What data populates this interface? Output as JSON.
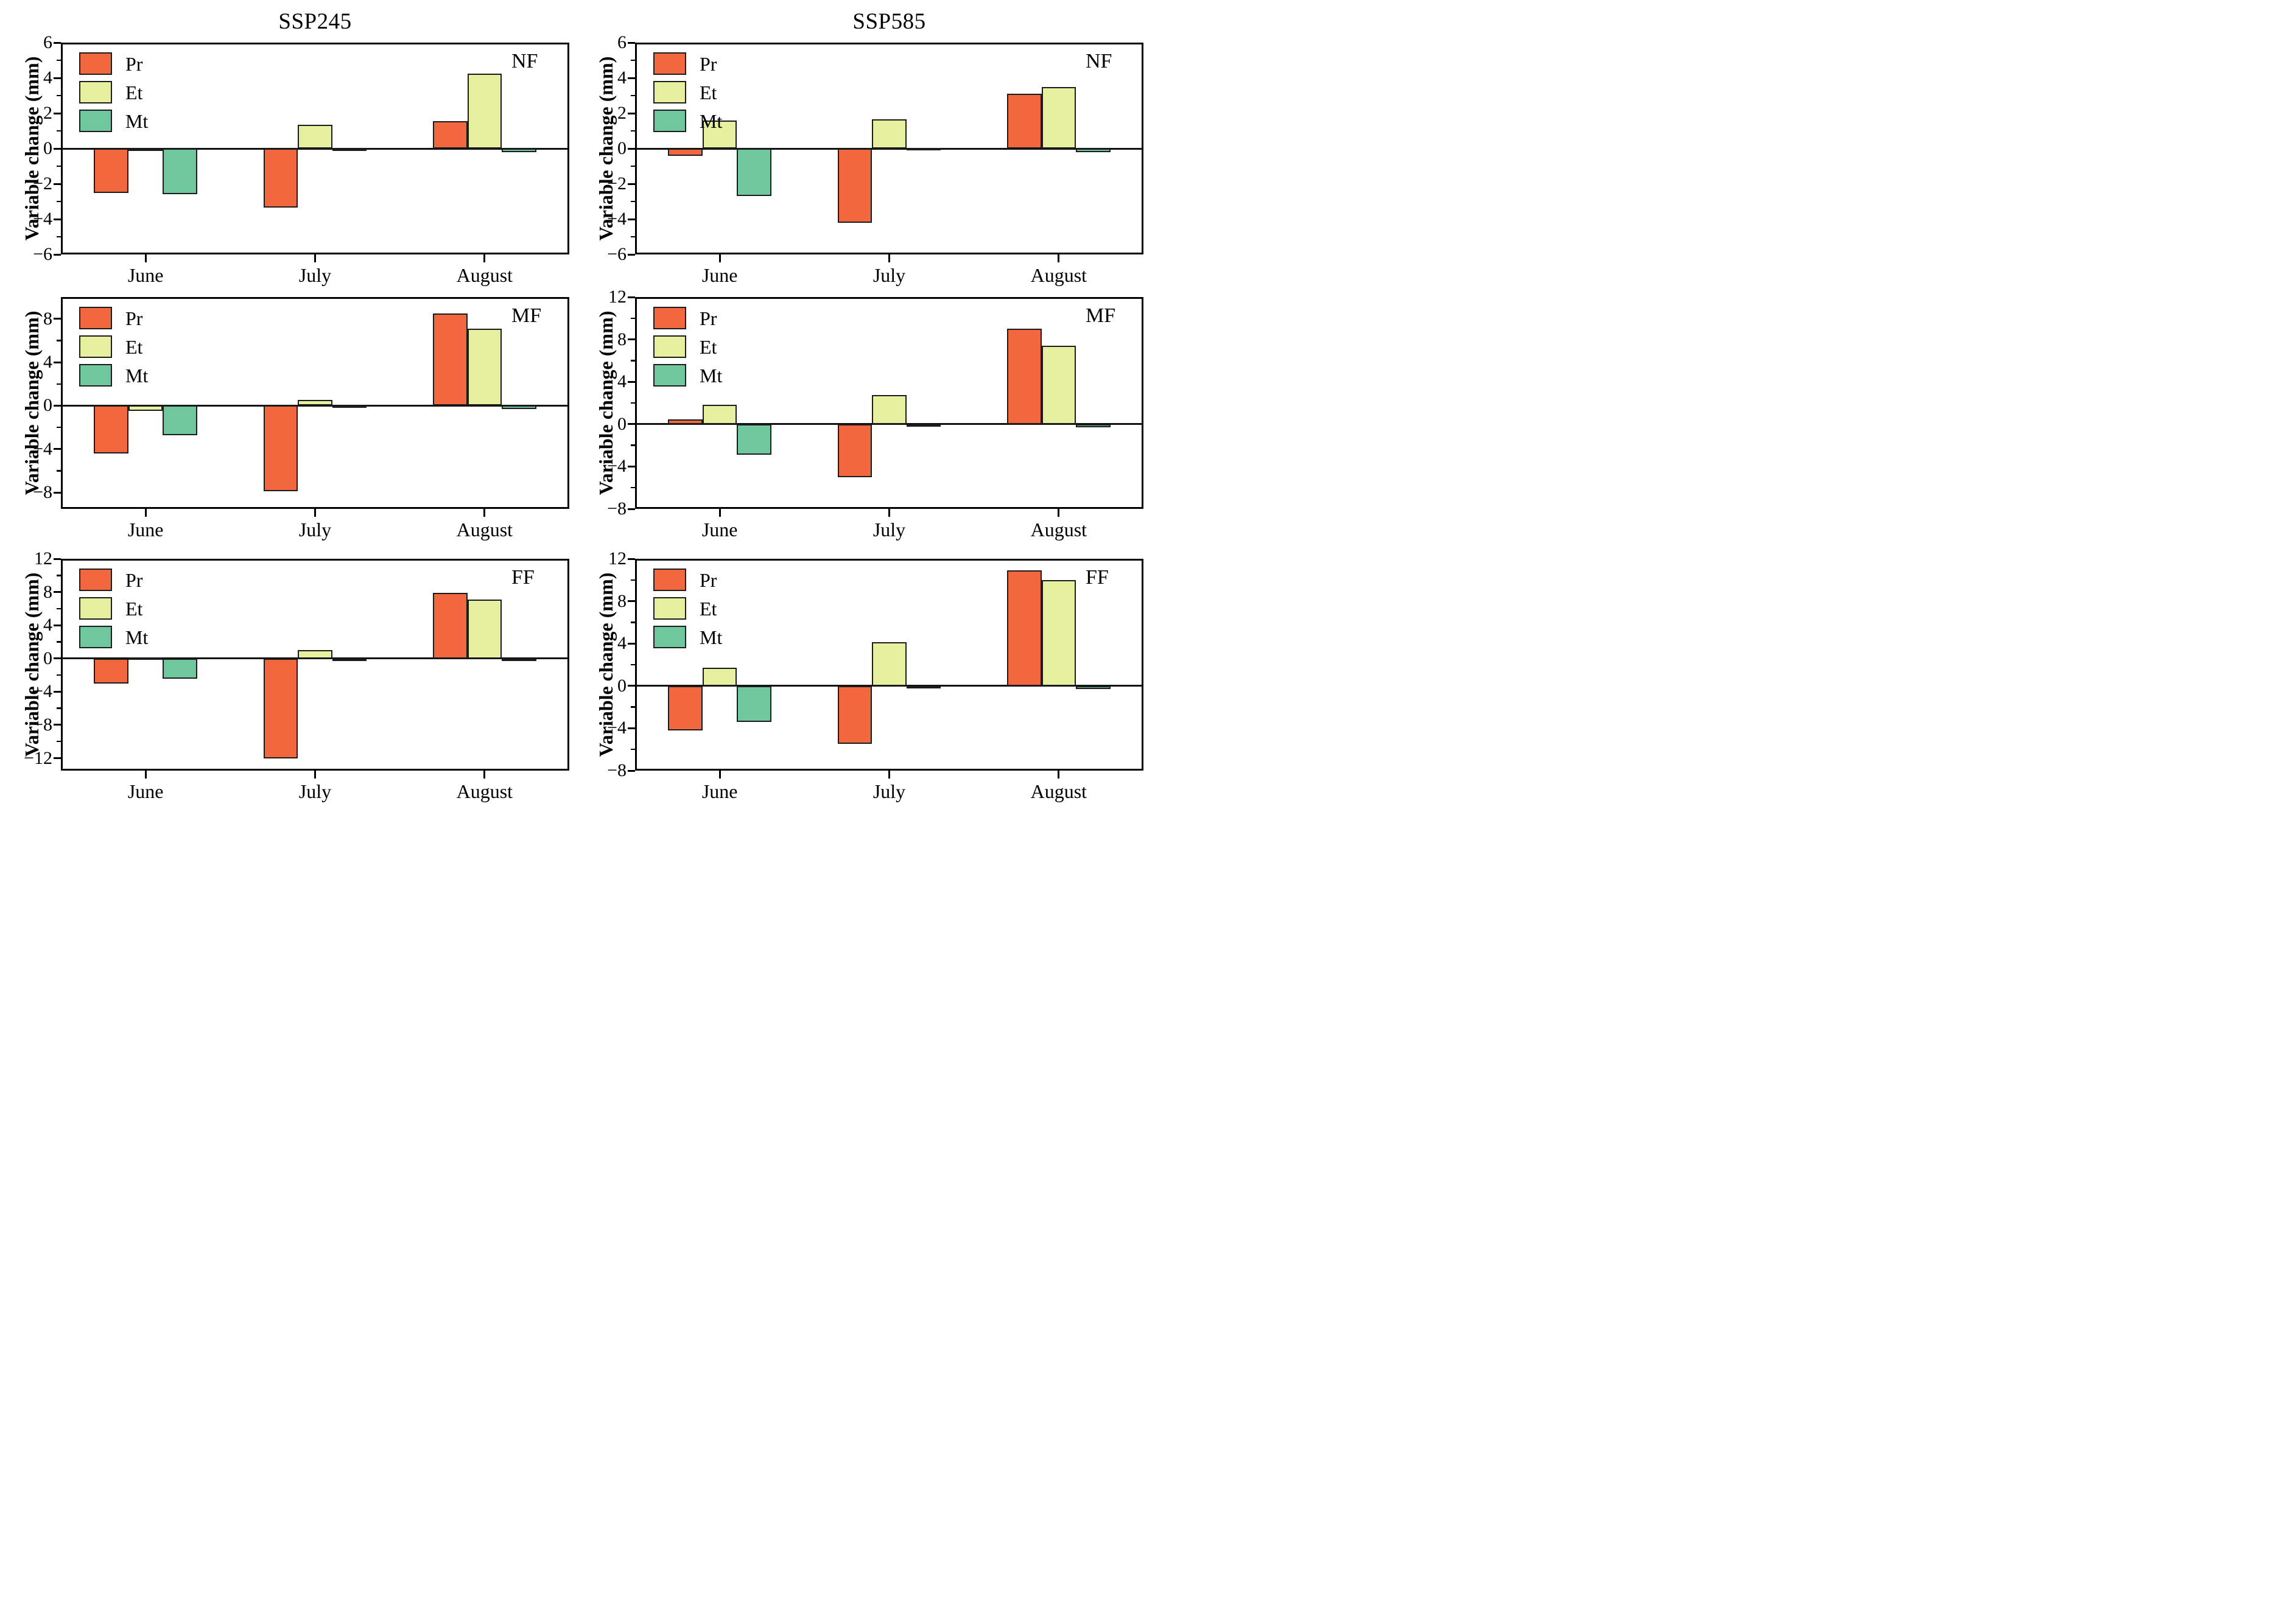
{
  "figure": {
    "column_titles": [
      "SSP245",
      "SSP585"
    ],
    "y_axis_label": "Variable change (mm)",
    "categories": [
      "June",
      "July",
      "August"
    ],
    "legend": [
      "Pr",
      "Et",
      "Mt"
    ],
    "period_tags": [
      "NF",
      "MF",
      "FF"
    ],
    "colors": {
      "Pr": "#F2673E",
      "Et": "#E7F09E",
      "Mt": "#6FC79D",
      "edge": "#1c1c1c",
      "axis": "#000000"
    }
  },
  "chart_data": [
    {
      "type": "bar",
      "title": "SSP245",
      "scenario": "SSP245",
      "period": "NF",
      "ylabel": "Variable change (mm)",
      "categories": [
        "June",
        "July",
        "August"
      ],
      "series": [
        {
          "name": "Pr",
          "values": [
            -2.5,
            -3.35,
            1.55
          ]
        },
        {
          "name": "Et",
          "values": [
            -0.15,
            1.35,
            4.25
          ]
        },
        {
          "name": "Mt",
          "values": [
            -2.6,
            -0.05,
            -0.2
          ]
        }
      ],
      "ylim": [
        -6,
        6
      ],
      "yticks": [
        6,
        4,
        2,
        0,
        -2,
        -4,
        -6
      ],
      "minor_step": 1,
      "legend_position": "upper-left",
      "grid": false
    },
    {
      "type": "bar",
      "title": "SSP585",
      "scenario": "SSP585",
      "period": "NF",
      "ylabel": "Variable change (mm)",
      "categories": [
        "June",
        "July",
        "August"
      ],
      "series": [
        {
          "name": "Pr",
          "values": [
            -0.4,
            -4.2,
            3.1
          ]
        },
        {
          "name": "Et",
          "values": [
            1.6,
            1.65,
            3.5
          ]
        },
        {
          "name": "Mt",
          "values": [
            -2.7,
            0.05,
            -0.2
          ]
        }
      ],
      "ylim": [
        -6,
        6
      ],
      "yticks": [
        6,
        4,
        2,
        0,
        -2,
        -4,
        -6
      ],
      "minor_step": 1,
      "legend_position": "upper-left",
      "grid": false
    },
    {
      "type": "bar",
      "title": "",
      "scenario": "SSP245",
      "period": "MF",
      "ylabel": "Variable change (mm)",
      "categories": [
        "June",
        "July",
        "August"
      ],
      "series": [
        {
          "name": "Pr",
          "values": [
            -4.4,
            -7.9,
            8.5
          ]
        },
        {
          "name": "Et",
          "values": [
            -0.5,
            0.55,
            7.1
          ]
        },
        {
          "name": "Mt",
          "values": [
            -2.7,
            -0.1,
            -0.3
          ]
        }
      ],
      "ylim": [
        -9.5,
        10
      ],
      "yticks": [
        8,
        4,
        0,
        -4,
        -8
      ],
      "minor_step": 2,
      "legend_position": "upper-left",
      "grid": false
    },
    {
      "type": "bar",
      "title": "",
      "scenario": "SSP585",
      "period": "MF",
      "ylabel": "Variable change (mm)",
      "categories": [
        "June",
        "July",
        "August"
      ],
      "series": [
        {
          "name": "Pr",
          "values": [
            0.45,
            -5.0,
            9.0
          ]
        },
        {
          "name": "Et",
          "values": [
            1.8,
            2.75,
            7.4
          ]
        },
        {
          "name": "Mt",
          "values": [
            -2.9,
            -0.1,
            -0.3
          ]
        }
      ],
      "ylim": [
        -8,
        12
      ],
      "yticks": [
        12,
        8,
        4,
        0,
        -4,
        -8
      ],
      "minor_step": 2,
      "legend_position": "upper-left",
      "grid": false
    },
    {
      "type": "bar",
      "title": "",
      "scenario": "SSP245",
      "period": "FF",
      "ylabel": "Variable change (mm)",
      "categories": [
        "June",
        "July",
        "August"
      ],
      "series": [
        {
          "name": "Pr",
          "values": [
            -3.0,
            -12.0,
            7.9
          ]
        },
        {
          "name": "Et",
          "values": [
            0.1,
            1.0,
            7.1
          ]
        },
        {
          "name": "Mt",
          "values": [
            -2.4,
            -0.05,
            -0.2
          ]
        }
      ],
      "ylim": [
        -13.5,
        12
      ],
      "yticks": [
        12,
        8,
        4,
        0,
        -4,
        -8,
        -12
      ],
      "minor_step": 2,
      "legend_position": "upper-left",
      "grid": false
    },
    {
      "type": "bar",
      "title": "",
      "scenario": "SSP585",
      "period": "FF",
      "ylabel": "Variable change (mm)",
      "categories": [
        "June",
        "July",
        "August"
      ],
      "series": [
        {
          "name": "Pr",
          "values": [
            -4.2,
            -5.5,
            10.9
          ]
        },
        {
          "name": "Et",
          "values": [
            1.7,
            4.1,
            10.0
          ]
        },
        {
          "name": "Mt",
          "values": [
            -3.4,
            -0.1,
            -0.3
          ]
        }
      ],
      "ylim": [
        -8,
        12
      ],
      "yticks": [
        12,
        8,
        4,
        0,
        -4,
        -8
      ],
      "minor_step": 2,
      "legend_position": "upper-left",
      "grid": false
    }
  ]
}
